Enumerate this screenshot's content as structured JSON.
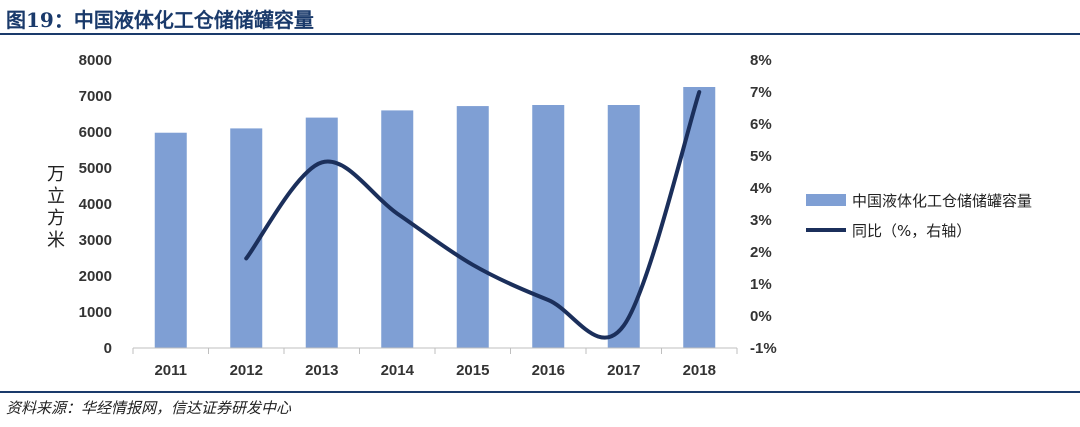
{
  "title": "图19：中国液体化工仓储储罐容量",
  "source": "资料来源：华经情报网，信达证券研发中心",
  "chart_data": {
    "type": "bar",
    "categories": [
      "2011",
      "2012",
      "2013",
      "2014",
      "2015",
      "2016",
      "2017",
      "2018"
    ],
    "series": [
      {
        "name": "中国液体化工仓储储罐容量",
        "type": "bar",
        "axis": "left",
        "color": "#7f9fd4",
        "values": [
          5980,
          6100,
          6400,
          6600,
          6720,
          6750,
          6750,
          7250
        ]
      },
      {
        "name": "同比（%，右轴）",
        "type": "line",
        "axis": "right",
        "color": "#1b2f5b",
        "values": [
          null,
          1.8,
          4.8,
          3.2,
          1.6,
          0.5,
          -0.3,
          7.0
        ]
      }
    ],
    "ylabel": "万立方米",
    "ylim": [
      0,
      8000
    ],
    "yticks": [
      "0",
      "1000",
      "2000",
      "3000",
      "4000",
      "5000",
      "6000",
      "7000",
      "8000"
    ],
    "y2lim": [
      -1,
      8
    ],
    "y2ticks": [
      "-1%",
      "0%",
      "1%",
      "2%",
      "3%",
      "4%",
      "5%",
      "6%",
      "7%",
      "8%"
    ],
    "legend_position": "right"
  }
}
